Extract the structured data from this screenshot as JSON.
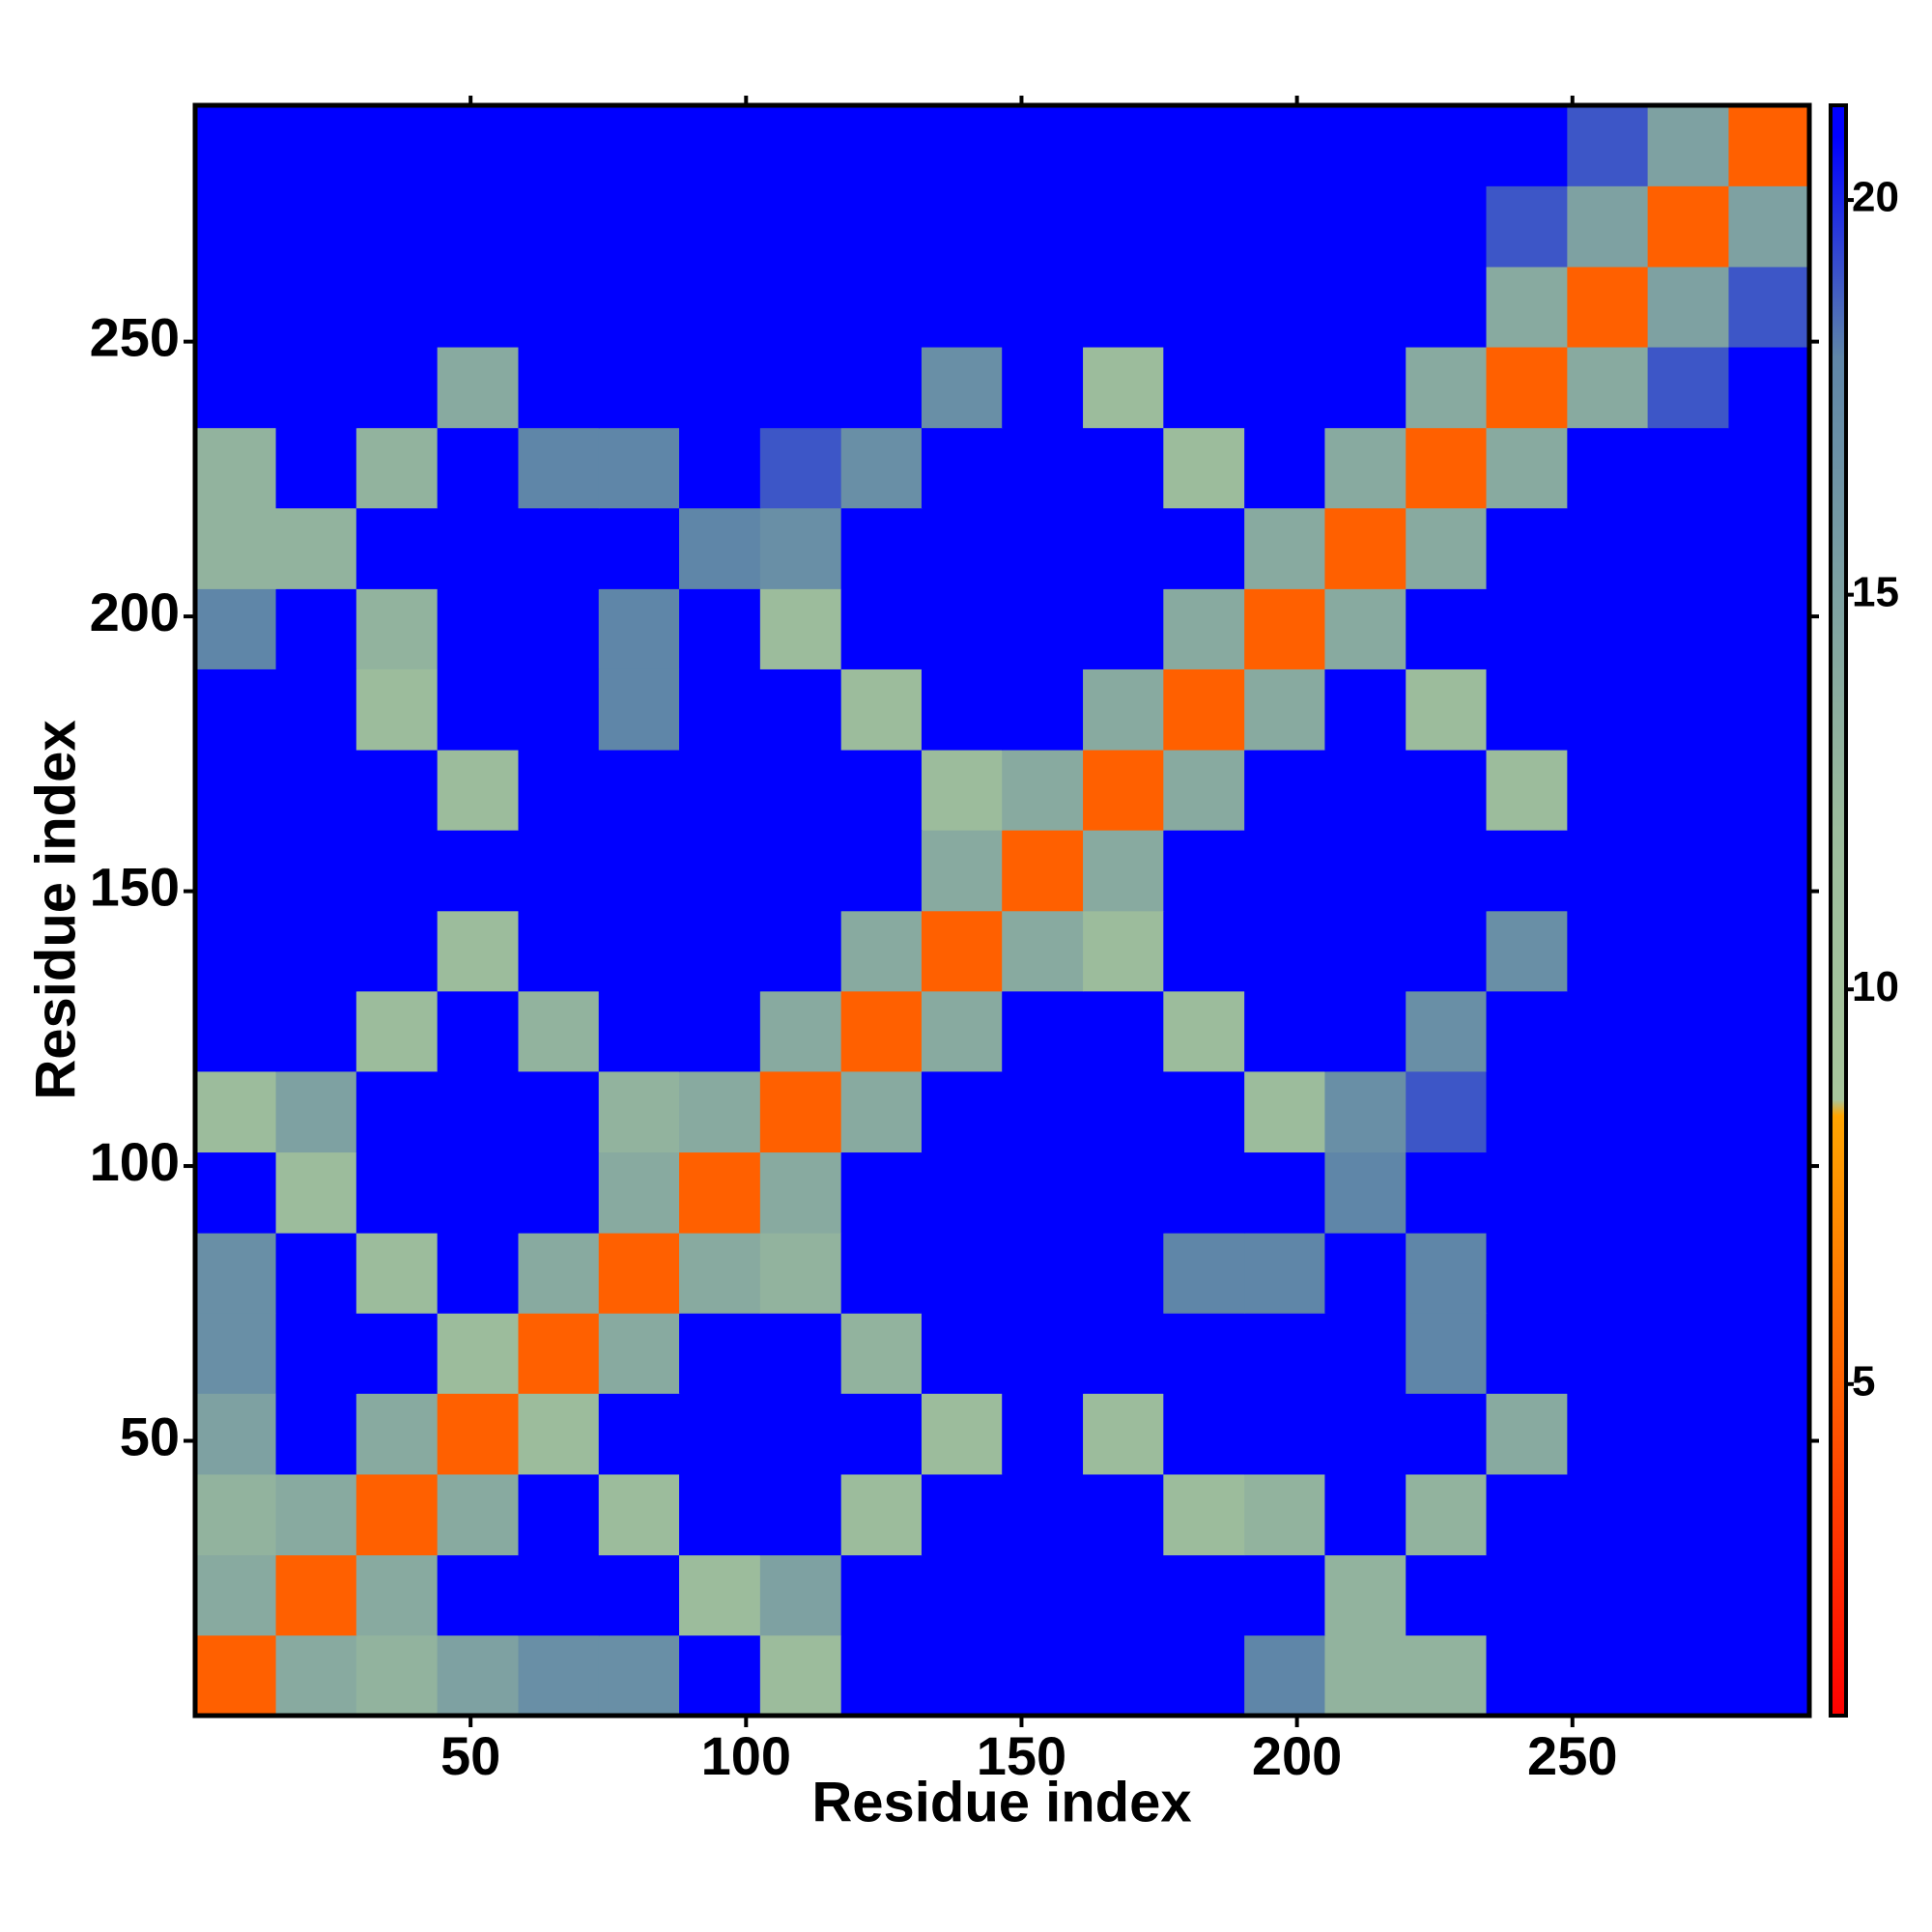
{
  "chart_data": {
    "type": "heatmap",
    "xlabel": "Residue index",
    "ylabel": "Residue index",
    "x": [
      7.3,
      22,
      36.6,
      51.3,
      66,
      80.6,
      95.2,
      109.9,
      124.6,
      139.2,
      153.8,
      168.5,
      183.1,
      197.8,
      212.4,
      227.1,
      241.7,
      256.4,
      271,
      285.7
    ],
    "y": [
      7.3,
      22,
      36.6,
      51.3,
      66,
      80.6,
      95.2,
      109.9,
      124.6,
      139.2,
      153.8,
      168.5,
      183.1,
      197.8,
      212.4,
      227.1,
      241.7,
      256.4,
      271,
      285.7
    ],
    "values": [
      [
        5,
        14,
        13,
        15,
        17,
        17,
        21,
        12,
        21,
        21,
        21,
        21,
        21,
        18,
        13,
        13,
        21,
        21,
        21,
        21
      ],
      [
        14,
        5,
        14,
        21,
        21,
        21,
        12,
        15,
        21,
        21,
        21,
        21,
        21,
        21,
        13,
        21,
        21,
        21,
        21,
        21
      ],
      [
        13,
        14,
        5,
        14,
        21,
        12,
        21,
        21,
        12,
        21,
        21,
        21,
        12,
        13,
        21,
        13,
        21,
        21,
        21,
        21
      ],
      [
        15,
        21,
        14,
        5,
        12,
        21,
        21,
        21,
        21,
        12,
        21,
        12,
        21,
        21,
        21,
        21,
        14,
        21,
        21,
        21
      ],
      [
        17,
        21,
        21,
        12,
        5,
        14,
        21,
        21,
        13,
        21,
        21,
        21,
        21,
        21,
        21,
        18,
        21,
        21,
        21,
        21
      ],
      [
        17,
        21,
        12,
        21,
        14,
        5,
        14,
        13,
        21,
        21,
        21,
        21,
        18,
        18,
        21,
        18,
        21,
        21,
        21,
        21
      ],
      [
        21,
        12,
        21,
        21,
        21,
        14,
        5,
        14,
        21,
        21,
        21,
        21,
        21,
        21,
        18,
        21,
        21,
        21,
        21,
        21
      ],
      [
        12,
        15,
        21,
        21,
        21,
        13,
        14,
        5,
        14,
        21,
        21,
        21,
        21,
        12,
        17,
        19,
        21,
        21,
        21,
        21
      ],
      [
        21,
        21,
        12,
        21,
        13,
        21,
        21,
        14,
        5,
        14,
        21,
        21,
        12,
        21,
        21,
        17,
        21,
        21,
        21,
        21
      ],
      [
        21,
        21,
        21,
        12,
        21,
        21,
        21,
        21,
        14,
        5,
        14,
        12,
        21,
        21,
        21,
        21,
        17,
        21,
        21,
        21
      ],
      [
        21,
        21,
        21,
        21,
        21,
        21,
        21,
        21,
        21,
        14,
        5,
        14,
        21,
        21,
        21,
        21,
        21,
        21,
        21,
        21
      ],
      [
        21,
        21,
        21,
        12,
        21,
        21,
        21,
        21,
        21,
        12,
        14,
        5,
        14,
        21,
        21,
        21,
        12,
        21,
        21,
        21
      ],
      [
        21,
        21,
        12,
        21,
        21,
        18,
        21,
        21,
        12,
        21,
        21,
        14,
        5,
        14,
        21,
        12,
        21,
        21,
        21,
        21
      ],
      [
        18,
        21,
        13,
        21,
        21,
        18,
        21,
        12,
        21,
        21,
        21,
        21,
        14,
        5,
        14,
        21,
        21,
        21,
        21,
        21
      ],
      [
        13,
        13,
        21,
        21,
        21,
        21,
        18,
        17,
        21,
        21,
        21,
        21,
        21,
        14,
        5,
        14,
        21,
        21,
        21,
        21
      ],
      [
        13,
        21,
        13,
        21,
        18,
        18,
        21,
        19,
        17,
        21,
        21,
        21,
        12,
        21,
        14,
        5,
        14,
        21,
        21,
        21
      ],
      [
        21,
        21,
        21,
        14,
        21,
        21,
        21,
        21,
        21,
        17,
        21,
        12,
        21,
        21,
        21,
        14,
        5,
        14,
        19,
        21
      ],
      [
        21,
        21,
        21,
        21,
        21,
        21,
        21,
        21,
        21,
        21,
        21,
        21,
        21,
        21,
        21,
        21,
        14,
        5,
        15,
        19
      ],
      [
        21,
        21,
        21,
        21,
        21,
        21,
        21,
        21,
        21,
        21,
        21,
        21,
        21,
        21,
        21,
        21,
        19,
        15,
        5,
        15
      ],
      [
        21,
        21,
        21,
        21,
        21,
        21,
        21,
        21,
        21,
        21,
        21,
        21,
        21,
        21,
        21,
        21,
        21,
        19,
        15,
        5
      ]
    ],
    "xlim": [
      0,
      293
    ],
    "ylim": [
      0,
      293
    ],
    "xticks": [
      50,
      100,
      150,
      200,
      250
    ],
    "yticks": [
      50,
      100,
      150,
      200,
      250
    ],
    "clim": [
      0.8,
      21.2
    ],
    "cticks": [
      5,
      10,
      15,
      20
    ],
    "colorscale": [
      [
        0.8,
        "#ff0000"
      ],
      [
        5,
        "#ff6000"
      ],
      [
        8.4,
        "#ffa500"
      ],
      [
        8.6,
        "#a8c69c"
      ],
      [
        12,
        "#9cbc9c"
      ],
      [
        18,
        "#5f86a8"
      ],
      [
        20.8,
        "#0000ff"
      ]
    ]
  }
}
